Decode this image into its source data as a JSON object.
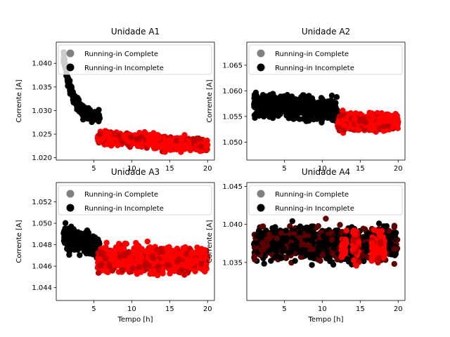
{
  "chart_data": [
    {
      "type": "scatter",
      "title": "Unidade A1",
      "xlabel": "",
      "ylabel": "Corrente [A]",
      "xlim": [
        0.05,
        20.9
      ],
      "ylim": [
        1.0195,
        1.0445
      ],
      "xticks": [
        5,
        10,
        15,
        20
      ],
      "yticks": [
        1.02,
        1.025,
        1.03,
        1.035,
        1.04
      ],
      "ytick_labels": [
        "1.020",
        "1.025",
        "1.030",
        "1.035",
        "1.040"
      ],
      "legend": {
        "placement": "top-right",
        "entries": [
          "Running-in Complete",
          "Running-in Incomplete"
        ]
      },
      "series": [
        {
          "name": "Running-in Incomplete",
          "color": "#000000",
          "segments": [
            [
              1.0,
              5.8,
              "decay"
            ]
          ],
          "base": 1.0285,
          "amp": 0.013,
          "tau": 1.2,
          "noise": 0.0025
        },
        {
          "name": "Running-in Complete",
          "color": "#ff0000",
          "segments": [
            [
              5.5,
              20.0,
              "band"
            ]
          ],
          "base": 1.025,
          "slope": -0.00012,
          "noise": 0.0028
        }
      ]
    },
    {
      "type": "scatter",
      "title": "Unidade A2",
      "xlabel": "",
      "ylabel": "Corrente [A]",
      "xlim": [
        0.05,
        20.9
      ],
      "ylim": [
        1.0465,
        1.0695
      ],
      "xticks": [
        5,
        10,
        15,
        20
      ],
      "yticks": [
        1.05,
        1.055,
        1.06,
        1.065
      ],
      "ytick_labels": [
        "1.050",
        "1.055",
        "1.060",
        "1.065"
      ],
      "legend": {
        "placement": "top-right",
        "entries": [
          "Running-in Complete",
          "Running-in Incomplete"
        ]
      },
      "series": [
        {
          "name": "Running-in Incomplete",
          "color": "#000000",
          "segments": [
            [
              1.0,
              12.0,
              "band"
            ]
          ],
          "base": 1.0575,
          "slope": -0.0001,
          "noise": 0.0045
        },
        {
          "name": "Running-in Complete",
          "color": "#ff0000",
          "segments": [
            [
              12.0,
              20.0,
              "band"
            ]
          ],
          "base": 1.054,
          "slope": 0.0,
          "noise": 0.0035
        }
      ]
    },
    {
      "type": "scatter",
      "title": "Unidade A3",
      "xlabel": "Tempo [h]",
      "ylabel": "Corrente [A]",
      "xlim": [
        0.05,
        20.9
      ],
      "ylim": [
        1.0428,
        1.0538
      ],
      "xticks": [
        5,
        10,
        15,
        20
      ],
      "yticks": [
        1.044,
        1.046,
        1.048,
        1.05,
        1.052
      ],
      "ytick_labels": [
        "1.044",
        "1.046",
        "1.048",
        "1.050",
        "1.052"
      ],
      "legend": {
        "placement": "top-right",
        "entries": [
          "Running-in Complete",
          "Running-in Incomplete"
        ]
      },
      "series": [
        {
          "name": "Running-in Incomplete",
          "color": "#000000",
          "segments": [
            [
              1.0,
              5.8,
              "band"
            ]
          ],
          "base": 1.049,
          "slope": -0.0002,
          "noise": 0.0022
        },
        {
          "name": "Running-in Complete",
          "color": "#ff0000",
          "segments": [
            [
              5.5,
              20.0,
              "band"
            ]
          ],
          "base": 1.0466,
          "slope": 0.0,
          "noise": 0.0026
        }
      ]
    },
    {
      "type": "scatter",
      "title": "Unidade A4",
      "xlabel": "Tempo [h]",
      "ylabel": "Corrente [A]",
      "xlim": [
        0.05,
        20.9
      ],
      "ylim": [
        1.03,
        1.0455
      ],
      "xticks": [
        5,
        10,
        15,
        20
      ],
      "yticks": [
        1.035,
        1.04,
        1.045
      ],
      "ytick_labels": [
        "1.035",
        "1.040",
        "1.045"
      ],
      "legend": {
        "placement": "top-right",
        "entries": [
          "Running-in Complete",
          "Running-in Incomplete"
        ]
      },
      "series": [
        {
          "name": "Running-in Incomplete",
          "color": "#000000",
          "segments": [
            [
              1.0,
              20.0,
              "band"
            ]
          ],
          "base": 1.0375,
          "slope": 0.0,
          "noise": 0.0045
        },
        {
          "name": "Running-in Complete",
          "color": "#ff0000",
          "segments": [
            [
              12.5,
              13.2,
              "band"
            ],
            [
              14.0,
              14.8,
              "band"
            ],
            [
              16.5,
              18.2,
              "band"
            ]
          ],
          "base": 1.037,
          "slope": 0.0,
          "noise": 0.004
        }
      ]
    }
  ],
  "legend_colors": {
    "Running-in Complete": "#808080",
    "Running-in Incomplete": "#000000"
  }
}
